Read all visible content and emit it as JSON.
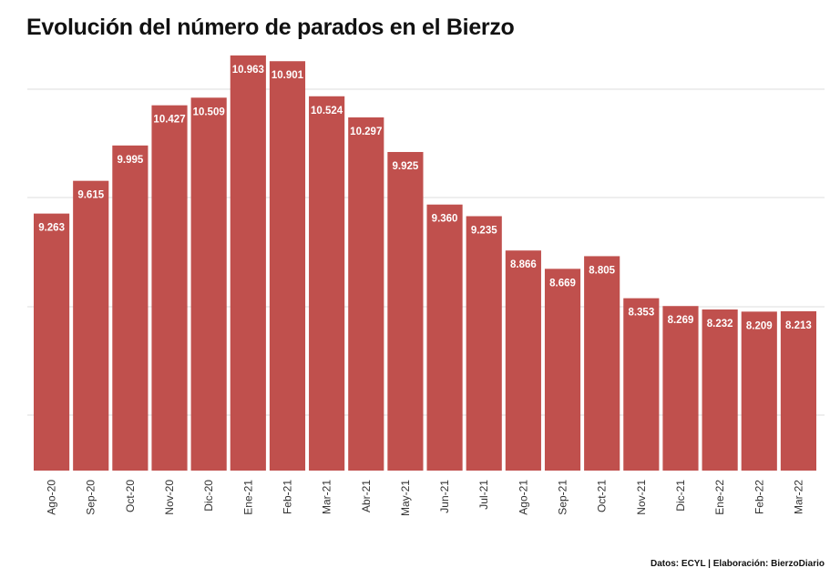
{
  "title": "Evolución del número de parados en el Bierzo",
  "source": "Datos: ECYL | Elaboración: BierzoDiario",
  "bar_color": "#c0504d",
  "chart_data": {
    "type": "bar",
    "title": "Evolución del número de parados en el Bierzo",
    "categories": [
      "Ago-20",
      "Sep-20",
      "Oct-20",
      "Nov-20",
      "Dic-20",
      "Ene-21",
      "Feb-21",
      "Mar-21",
      "Abr-21",
      "May-21",
      "Jun-21",
      "Jul-21",
      "Ago-21",
      "Sep-21",
      "Oct-21",
      "Nov-21",
      "Dic-21",
      "Ene-22",
      "Feb-22",
      "Mar-22"
    ],
    "values": [
      9263,
      9615,
      9995,
      10427,
      10509,
      10963,
      10901,
      10524,
      10297,
      9925,
      9360,
      9235,
      8866,
      8669,
      8805,
      8353,
      8269,
      8232,
      8209,
      8213
    ],
    "value_labels": [
      "9.263",
      "9.615",
      "9.995",
      "10.427",
      "10.509",
      "10.963",
      "10.901",
      "10.524",
      "10.297",
      "9.925",
      "9.360",
      "9.235",
      "8.866",
      "8.669",
      "8.805",
      "8.353",
      "8.269",
      "8.232",
      "8.209",
      "8.213"
    ],
    "xlabel": "",
    "ylabel": "",
    "ylim": [
      6500,
      10600
    ],
    "grid": true,
    "legend": "none"
  }
}
